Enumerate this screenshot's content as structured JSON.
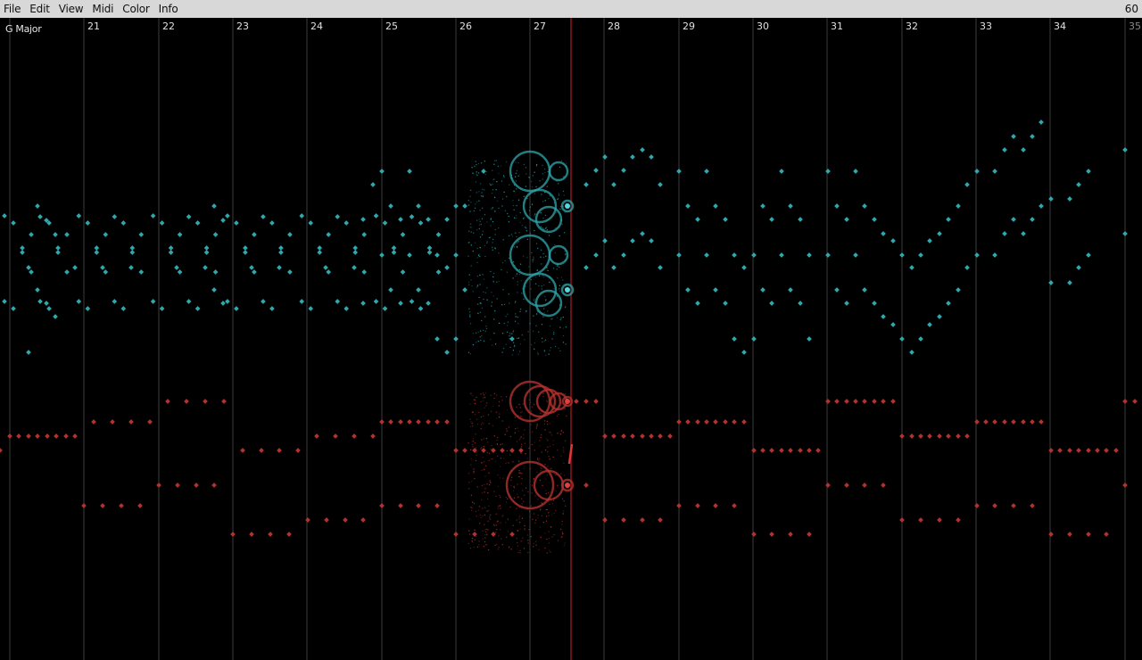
{
  "menu": {
    "items": [
      "File",
      "Edit",
      "View",
      "Midi",
      "Color",
      "Info"
    ],
    "fps": "60"
  },
  "roll": {
    "key_label": "G Major",
    "measures": [
      "21",
      "22",
      "23",
      "24",
      "25",
      "26",
      "27",
      "28",
      "29",
      "30",
      "31",
      "32",
      "33",
      "34",
      "35"
    ],
    "colors": {
      "treble": "#2fa8ad",
      "bass": "#b3322e",
      "playhead": "#6a1010",
      "barline": "#3c3c3c"
    }
  }
}
